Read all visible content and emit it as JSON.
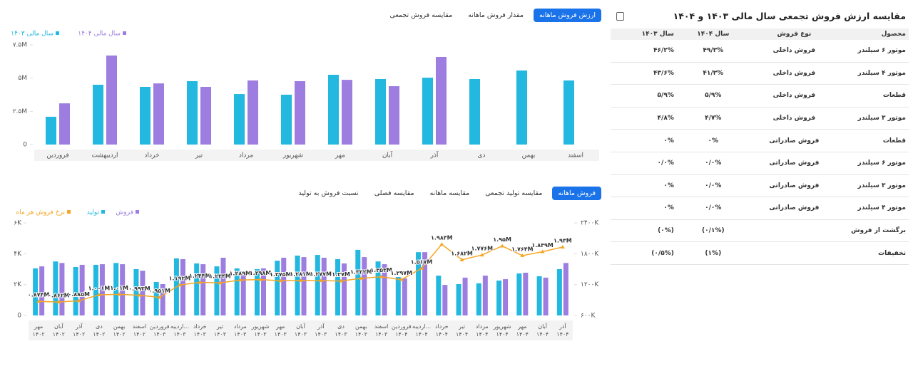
{
  "top_tabs": {
    "items": [
      "ارزش فروش ماهانه",
      "مقدار فروش ماهانه",
      "مقایسه فروش تجمعی"
    ],
    "active": 0
  },
  "bottom_tabs": {
    "items": [
      "فروش ماهانه",
      "مقایسه تولید تجمعی",
      "مقایسه ماهانه",
      "مقایسه فصلی",
      "نسبت فروش به تولید"
    ],
    "active": 0
  },
  "chart_data": [
    {
      "type": "bar",
      "categories": [
        "فروردین",
        "اردیبهشت",
        "خرداد",
        "تیر",
        "مرداد",
        "شهریور",
        "مهر",
        "آبان",
        "آذر",
        "دی",
        "بهمن",
        "اسفند"
      ],
      "series": [
        {
          "name": "سال مالی ۱۴۰۳",
          "color": "#22b8e0",
          "values": [
            2.09,
            4.5,
            4.34,
            4.77,
            3.8,
            3.75,
            5.25,
            4.93,
            5.03,
            4.93,
            5.57,
            4.82
          ]
        },
        {
          "name": "سال مالی ۱۴۰۴",
          "color": "#9d7ee0",
          "values": [
            3.1,
            6.7,
            4.6,
            4.34,
            4.82,
            4.77,
            4.87,
            4.39,
            6.59,
            null,
            null,
            null
          ]
        }
      ],
      "ylim": [
        0,
        7.5
      ],
      "yticks": [
        0,
        {
          "value": 2.5,
          "label": "۲.۵M"
        },
        {
          "value": 5,
          "label": "۵M"
        },
        {
          "value": 7.5,
          "label": "۷.۵M"
        }
      ]
    },
    {
      "type": "combo",
      "categories": [
        "مهر\n۱۴۰۲",
        "آبان\n۱۴۰۲",
        "آذر\n۱۴۰۲",
        "دی\n۱۴۰۲",
        "بهمن\n۱۴۰۲",
        "اسفند\n۱۴۰۲",
        "فروردین\n۱۴۰۳",
        "اردیبه...\n۱۴۰۳",
        "خرداد\n۱۴۰۳",
        "تیر\n۱۴۰۳",
        "مرداد\n۱۴۰۳",
        "شهریور\n۱۴۰۳",
        "مهر\n۱۴۰۳",
        "آبان\n۱۴۰۳",
        "آذر\n۱۴۰۳",
        "دی\n۱۴۰۳",
        "بهمن\n۱۴۰۳",
        "اسفند\n۱۴۰۳",
        "فروردین\n۱۴۰۴",
        "اردیبه...\n۱۴۰۴",
        "خرداد\n۱۴۰۴",
        "تیر\n۱۴۰۴",
        "مرداد\n۱۴۰۴",
        "شهریور\n۱۴۰۴",
        "مهر\n۱۴۰۴",
        "آبان\n۱۴۰۴",
        "آذر\n۱۴۰۴"
      ],
      "series": [
        {
          "name": "فروش",
          "type": "bar",
          "color": "#9d7ee0",
          "values": [
            3.18,
            3.4,
            3.28,
            3.32,
            3.32,
            2.9,
            2.03,
            3.65,
            3.32,
            3.74,
            2.86,
            3.05,
            3.74,
            3.78,
            3.74,
            3.37,
            3.78,
            3.32,
            2.4,
            4.1,
            1.98,
            2.45,
            2.58,
            2.35,
            2.77,
            2.45,
            3.4
          ]
        },
        {
          "name": "تولید",
          "type": "bar",
          "color": "#22b8e0",
          "values": [
            3.05,
            3.5,
            3.14,
            3.28,
            3.4,
            3.0,
            2.17,
            3.7,
            3.37,
            3.18,
            3.05,
            3.0,
            3.55,
            3.88,
            3.92,
            3.65,
            4.25,
            3.5,
            2.49,
            4.1,
            2.58,
            2.03,
            2.08,
            2.26,
            2.72,
            2.54,
            3.0
          ]
        },
        {
          "name": "نرخ فروش هر ماه",
          "type": "line",
          "axis": "y2",
          "color": "#f5a623",
          "values": [
            874,
            862,
            885,
            1001,
            1010,
            993,
            951,
            1192,
            1244,
            1234,
            1289,
            1298,
            1275,
            1281,
            1277,
            1270,
            1322,
            1353,
            1297,
            1517,
            1983,
            1682,
            1776,
            1950,
            1764,
            1839,
            1930
          ],
          "value_labels": [
            "۰.۸۷۴M",
            "۰.۸۶۲M",
            "۰.۸۸۵M",
            "۱.۰۰۱M",
            "۱.۰۱M",
            "۰.۹۹۳M",
            "۰.۹۵۱M",
            "۱.۱۹۲M",
            "۱.۲۴۴M",
            "۱.۲۳۴M",
            "۱.۲۸۹M",
            "۱.۲۹۸M",
            "۱.۲۷۵M",
            "۱.۲۸۱M",
            "۱.۲۷۷M",
            "۱.۲۷M",
            "۱.۳۲۲M",
            "۱.۳۵۳M",
            "۱.۲۹۷M",
            "۱.۵۱۷M",
            "۱.۹۸۳M",
            "۱.۶۸۲M",
            "۱.۷۷۶M",
            "۱.۹۵M",
            "۱.۷۶۴M",
            "۱.۸۳۹M",
            "۱.۹۳M"
          ]
        }
      ],
      "ylim": [
        0,
        6
      ],
      "yticks": [
        0,
        {
          "value": 2,
          "label": "۲K"
        },
        {
          "value": 4,
          "label": "۴K"
        },
        {
          "value": 6,
          "label": "۶K"
        }
      ],
      "y2lim": [
        600,
        2400
      ],
      "y2ticks": [
        {
          "value": 600,
          "label": "۶۰۰K"
        },
        {
          "value": 1200,
          "label": "۱۲۰۰K"
        },
        {
          "value": 1800,
          "label": "۱۸۰۰K"
        },
        {
          "value": 2400,
          "label": "۲۴۰۰K"
        }
      ]
    }
  ],
  "table": {
    "title": "مقایسه ارزش فروش تجمعی سال مالی ۱۴۰۳ و ۱۴۰۴",
    "header": [
      "محصول",
      "نوع فروش",
      "سال ۱۴۰۴",
      "سال ۱۴۰۳"
    ],
    "rows": [
      {
        "product": "موتور ۶ سیلندر",
        "type": "فروش داخلی",
        "y1404": "۴۹/۳%",
        "y1403": "۴۶/۲%"
      },
      {
        "product": "موتور ۴ سیلندر",
        "type": "فروش داخلی",
        "y1404": "۴۱/۳%",
        "y1403": "۴۳/۶%"
      },
      {
        "product": "قطعات",
        "type": "فروش داخلی",
        "y1404": "۵/۹%",
        "y1403": "۵/۹%"
      },
      {
        "product": "موتور ۳ سیلندر",
        "type": "فروش داخلی",
        "y1404": "۴/۷%",
        "y1403": "۴/۸%"
      },
      {
        "product": "قطعات",
        "type": "فروش صادراتی",
        "y1404": "۰%",
        "y1403": "۰%"
      },
      {
        "product": "موتور ۶ سیلندر",
        "type": "فروش صادراتی",
        "y1404": "۰/۰%",
        "y1403": "۰/۰%"
      },
      {
        "product": "موتور ۳ سیلندر",
        "type": "فروش صادراتی",
        "y1404": "۰/۰%",
        "y1403": "۰%"
      },
      {
        "product": "موتور ۴ سیلندر",
        "type": "فروش صادراتی",
        "y1404": "۰/۰%",
        "y1403": "۰%"
      },
      {
        "product": "برگشت از فروش",
        "y1404": "(۰/۱%)",
        "y1403": "(۰%)"
      },
      {
        "product": "تخفیفات",
        "y1404": "(۱%)",
        "y1403": "(۰/۵%)"
      }
    ]
  }
}
